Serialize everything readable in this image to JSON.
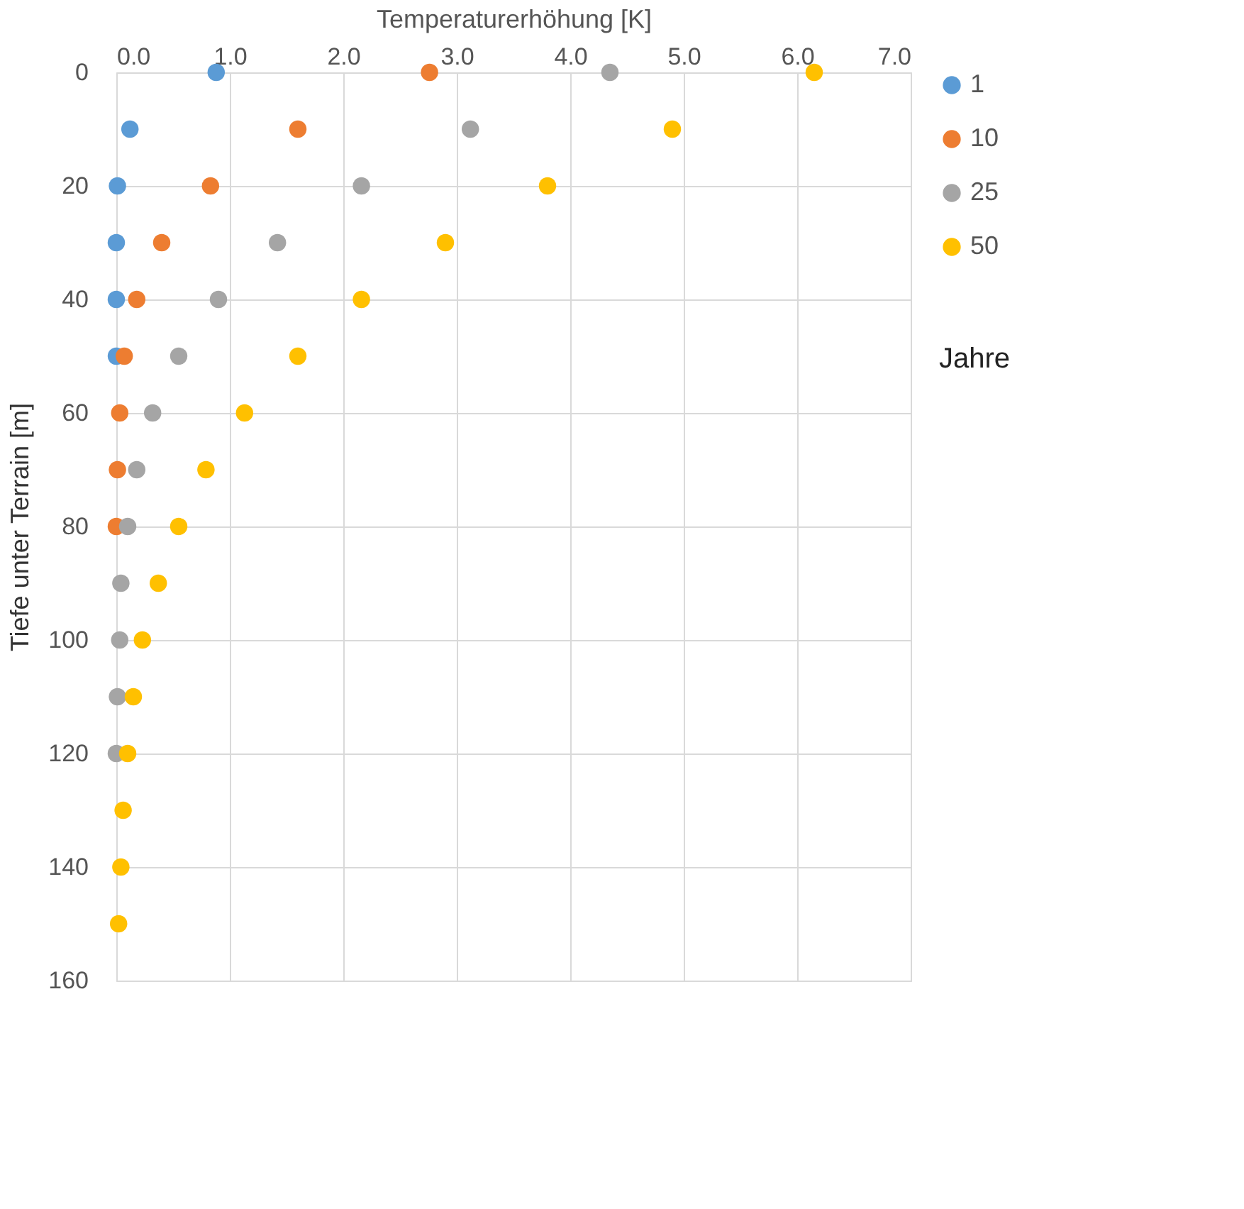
{
  "chart_data": {
    "type": "scatter",
    "xlabel": "Temperaturerhöhung [K]",
    "ylabel": "Tiefe unter Terrain [m]",
    "legend_title": "Jahre",
    "legend": "right",
    "grid": true,
    "marker": "circle",
    "xlim": [
      0,
      7
    ],
    "xticks": [
      {
        "value": 0,
        "label": "0.0"
      },
      {
        "value": 1,
        "label": "1.0"
      },
      {
        "value": 2,
        "label": "2.0"
      },
      {
        "value": 3,
        "label": "3.0"
      },
      {
        "value": 4,
        "label": "4.0"
      },
      {
        "value": 5,
        "label": "5.0"
      },
      {
        "value": 6,
        "label": "6.0"
      },
      {
        "value": 7,
        "label": "7.0"
      }
    ],
    "ylim": [
      160,
      0
    ],
    "yticks": [
      0,
      20,
      40,
      60,
      80,
      100,
      120,
      140,
      160
    ],
    "series": [
      {
        "name": "1",
        "color": "#5b9bd5",
        "x": [
          0.88,
          0.12,
          0.01,
          0.0,
          0.0,
          0.0
        ],
        "values": [
          0,
          10,
          20,
          30,
          40,
          50
        ]
      },
      {
        "name": "10",
        "color": "#ed7d31",
        "x": [
          2.76,
          1.6,
          0.83,
          0.4,
          0.18,
          0.07,
          0.03,
          0.01,
          0.0
        ],
        "values": [
          0,
          10,
          20,
          30,
          40,
          50,
          60,
          70,
          80
        ]
      },
      {
        "name": "25",
        "color": "#a5a5a5",
        "x": [
          4.35,
          3.12,
          2.16,
          1.42,
          0.9,
          0.55,
          0.32,
          0.18,
          0.1,
          0.04,
          0.03,
          0.01,
          0.0
        ],
        "values": [
          0,
          10,
          20,
          30,
          40,
          50,
          60,
          70,
          80,
          90,
          100,
          110,
          120
        ]
      },
      {
        "name": "50",
        "color": "#ffc000",
        "x": [
          6.15,
          4.9,
          3.8,
          2.9,
          2.16,
          1.6,
          1.13,
          0.79,
          0.55,
          0.37,
          0.23,
          0.15,
          0.1,
          0.06,
          0.04,
          0.02
        ],
        "values": [
          0,
          10,
          20,
          30,
          40,
          50,
          60,
          70,
          80,
          90,
          100,
          110,
          120,
          130,
          140,
          150
        ]
      }
    ]
  }
}
